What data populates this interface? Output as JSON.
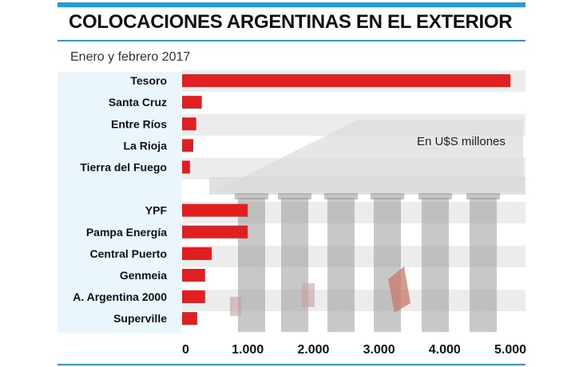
{
  "header": {
    "title": "COLOCACIONES ARGENTINAS EN EL EXTERIOR",
    "subtitle": "Enero y febrero 2017"
  },
  "colors": {
    "accent": "#1aa0dc",
    "bar": "#e02020"
  },
  "chart_data": {
    "type": "bar",
    "orientation": "horizontal",
    "unit_label": "En U$S millones",
    "categories": [
      "Tesoro",
      "Santa Cruz",
      "Entre Ríos",
      "La Rioja",
      "Tierra del Fuego",
      "",
      "YPF",
      "Pampa Energía",
      "Central Puerto",
      "Genmeia",
      "A. Argentina 2000",
      "Superville"
    ],
    "values": [
      5000,
      300,
      215,
      170,
      120,
      null,
      1000,
      1000,
      450,
      350,
      350,
      230
    ],
    "xlim": [
      0,
      5000
    ],
    "xticks": [
      "0",
      "1.000",
      "2.000",
      "3.000",
      "4.000",
      "5.000"
    ],
    "xtick_values": [
      0,
      1000,
      2000,
      3000,
      4000,
      5000
    ],
    "grid": false
  }
}
